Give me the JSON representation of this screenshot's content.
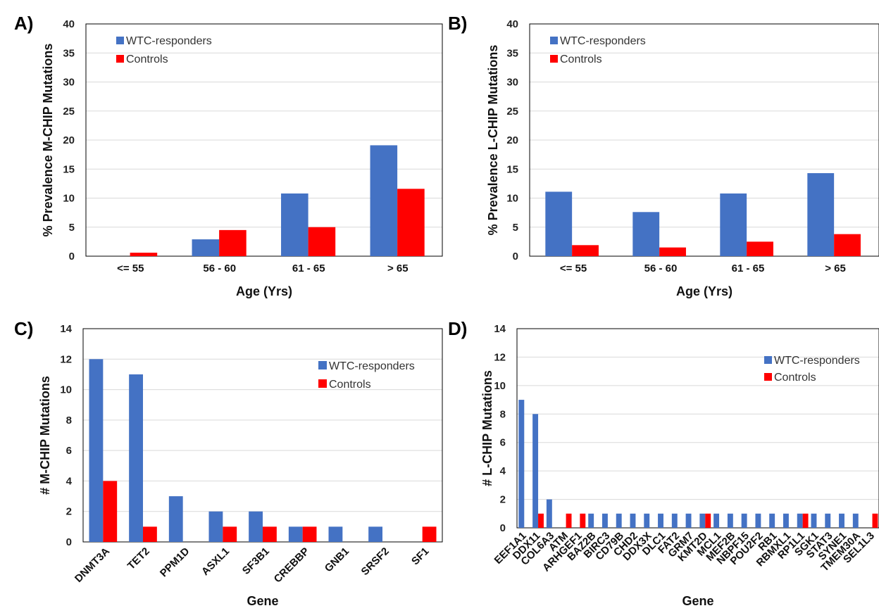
{
  "colors": {
    "wtc": "#4472C4",
    "controls": "#FF0000"
  },
  "chart_data": [
    {
      "panel": "A)",
      "type": "bar",
      "ylabel": "% Prevalence M-CHIP Mutations",
      "xlabel": "Age (Yrs)",
      "ylim": [
        0,
        40
      ],
      "yticks": [
        0,
        5,
        10,
        15,
        20,
        25,
        30,
        35,
        40
      ],
      "grid": true,
      "legend": "top-left",
      "categories": [
        "<= 55",
        "56 - 60",
        "61 - 65",
        "> 65"
      ],
      "series": [
        {
          "name": "WTC-responders",
          "values": [
            0,
            2.9,
            10.8,
            19.1
          ]
        },
        {
          "name": "Controls",
          "values": [
            0.6,
            4.5,
            5.0,
            11.6
          ]
        }
      ]
    },
    {
      "panel": "B)",
      "type": "bar",
      "ylabel": "% Prevalence L-CHIP Mutations",
      "xlabel": "Age (Yrs)",
      "ylim": [
        0,
        40
      ],
      "yticks": [
        0,
        5,
        10,
        15,
        20,
        25,
        30,
        35,
        40
      ],
      "grid": true,
      "legend": "top-left",
      "categories": [
        "<= 55",
        "56 - 60",
        "61 - 65",
        "> 65"
      ],
      "series": [
        {
          "name": "WTC-responders",
          "values": [
            11.1,
            7.6,
            10.8,
            14.3
          ]
        },
        {
          "name": "Controls",
          "values": [
            1.9,
            1.5,
            2.5,
            3.8
          ]
        }
      ]
    },
    {
      "panel": "C)",
      "type": "bar",
      "ylabel": "# M-CHIP Mutations",
      "xlabel": "Gene",
      "ylim": [
        0,
        14
      ],
      "yticks": [
        0,
        2,
        4,
        6,
        8,
        10,
        12,
        14
      ],
      "grid": true,
      "legend": "top-right",
      "categories": [
        "DNMT3A",
        "TET2",
        "PPM1D",
        "ASXL1",
        "SF3B1",
        "CREBBP",
        "GNB1",
        "SRSF2",
        "SF1"
      ],
      "series": [
        {
          "name": "WTC-responders",
          "values": [
            12,
            11,
            3,
            2,
            2,
            1,
            1,
            1,
            0
          ]
        },
        {
          "name": "Controls",
          "values": [
            4,
            1,
            0,
            1,
            1,
            1,
            0,
            0,
            1
          ]
        }
      ]
    },
    {
      "panel": "D)",
      "type": "bar",
      "ylabel": "# L-CHIP Mutations",
      "xlabel": "Gene",
      "ylim": [
        0,
        14
      ],
      "yticks": [
        0,
        2,
        4,
        6,
        8,
        10,
        12,
        14
      ],
      "grid": true,
      "legend": "top-right",
      "categories": [
        "EEF1A1",
        "DDX11",
        "COL6A3",
        "ATM",
        "ARHGEF1",
        "BAZ2B",
        "BIRC3",
        "CD79B",
        "CHD2",
        "DDX3X",
        "DLC1",
        "FAT2",
        "GRM7",
        "KMT2D",
        "MCL1",
        "MEF2B",
        "NBPF15",
        "POU2F2",
        "RB1",
        "RBMXL1",
        "RP1L1",
        "SGK1",
        "STAT3",
        "SYNE1",
        "TMEM30A",
        "SEL1L3"
      ],
      "series": [
        {
          "name": "WTC-responders",
          "values": [
            9,
            8,
            2,
            0,
            0,
            1,
            1,
            1,
            1,
            1,
            1,
            1,
            1,
            1,
            1,
            1,
            1,
            1,
            1,
            1,
            1,
            1,
            1,
            1,
            1,
            0
          ]
        },
        {
          "name": "Controls",
          "values": [
            0,
            1,
            0,
            1,
            1,
            0,
            0,
            0,
            0,
            0,
            0,
            0,
            0,
            1,
            0,
            0,
            0,
            0,
            0,
            0,
            1,
            0,
            0,
            0,
            0,
            1
          ]
        }
      ]
    }
  ]
}
